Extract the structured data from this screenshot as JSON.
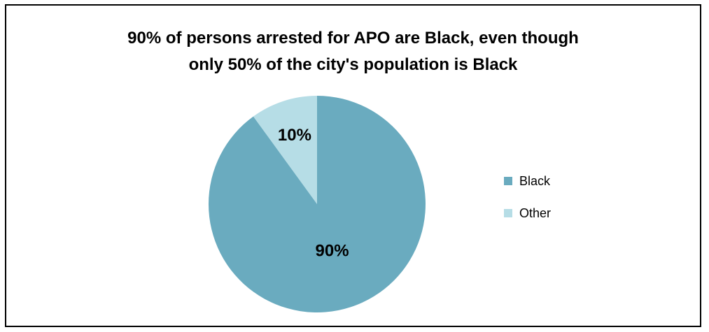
{
  "chart_data": {
    "type": "pie",
    "title_lines": [
      "90% of persons arrested for APO are Black, even though",
      "only 50% of the city's population is Black"
    ],
    "slices": [
      {
        "label": "Black",
        "value": 90,
        "display": "90%",
        "color": "#6AABBF"
      },
      {
        "label": "Other",
        "value": 10,
        "display": "10%",
        "color": "#B6DDE6"
      }
    ],
    "legend_position": "right"
  }
}
